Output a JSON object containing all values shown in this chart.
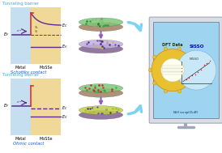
{
  "bg_color": "#ffffff",
  "cyan_barrier": "#29b6d6",
  "metal_blue": "#c5dff0",
  "semi_orange": "#f0d898",
  "purple_line": "#5b2d8e",
  "red_barrier": "#e03030",
  "arrow_blue": "#7dd4f0",
  "schottky_label": "Schottky contact",
  "ohmic_label": "Ohmic contact",
  "tunnel_label": "Tunneling barrier",
  "metal_label": "Metal",
  "mossed_label": "MoSSe",
  "dft_label": "DFT Data",
  "sisso_label": "SISSO",
  "nisso_label": "NiSSO",
  "formula_label": "W₁¹ⁿexp(Dᵥᵈᵂ)",
  "monitor_frame": "#d0d8e0",
  "monitor_dark": "#808890",
  "screen_bg": "#88ccee",
  "gear_yellow": "#e8c030",
  "gear_edge": "#c09010"
}
